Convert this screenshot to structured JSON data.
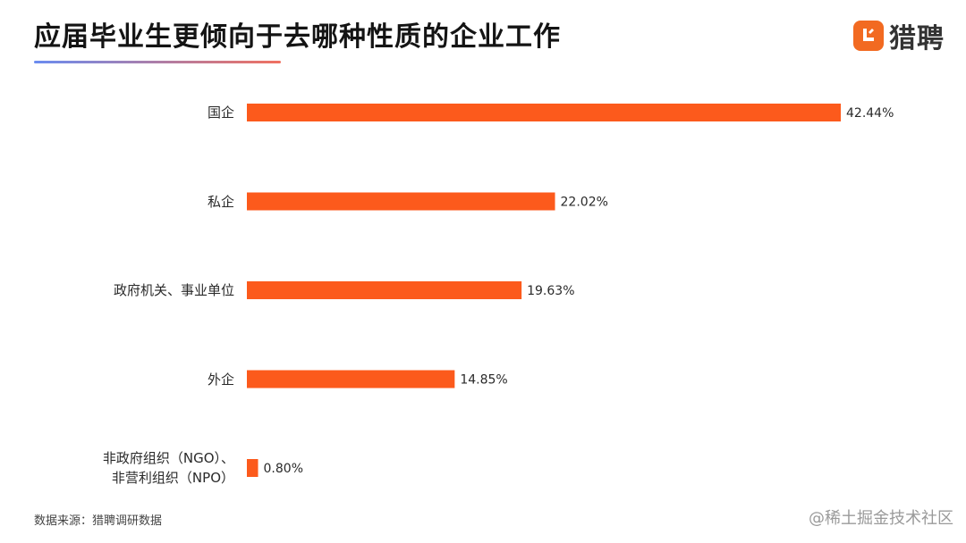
{
  "title": "应届毕业生更倾向于去哪种性质的企业工作",
  "logo": {
    "text": "猎聘",
    "icon": "liepin-logo-icon"
  },
  "source": "数据来源：猎聘调研数据",
  "watermark": "@稀土掘金技术社区",
  "colors": {
    "bar": "#fc5a1c",
    "underline_start": "#6a8cf0",
    "underline_end": "#f07060",
    "logo": "#f26a21"
  },
  "chart_data": {
    "type": "bar",
    "orientation": "horizontal",
    "categories": [
      "国企",
      "私企",
      "政府机关、事业单位",
      "外企",
      "非政府组织（NGO）、\n非营利组织（NPO）"
    ],
    "values": [
      42.44,
      22.02,
      19.63,
      14.85,
      0.8
    ],
    "value_labels": [
      "42.44%",
      "22.02%",
      "19.63%",
      "14.85%",
      "0.80%"
    ],
    "unit": "%",
    "grid": false,
    "axes_visible": false
  }
}
